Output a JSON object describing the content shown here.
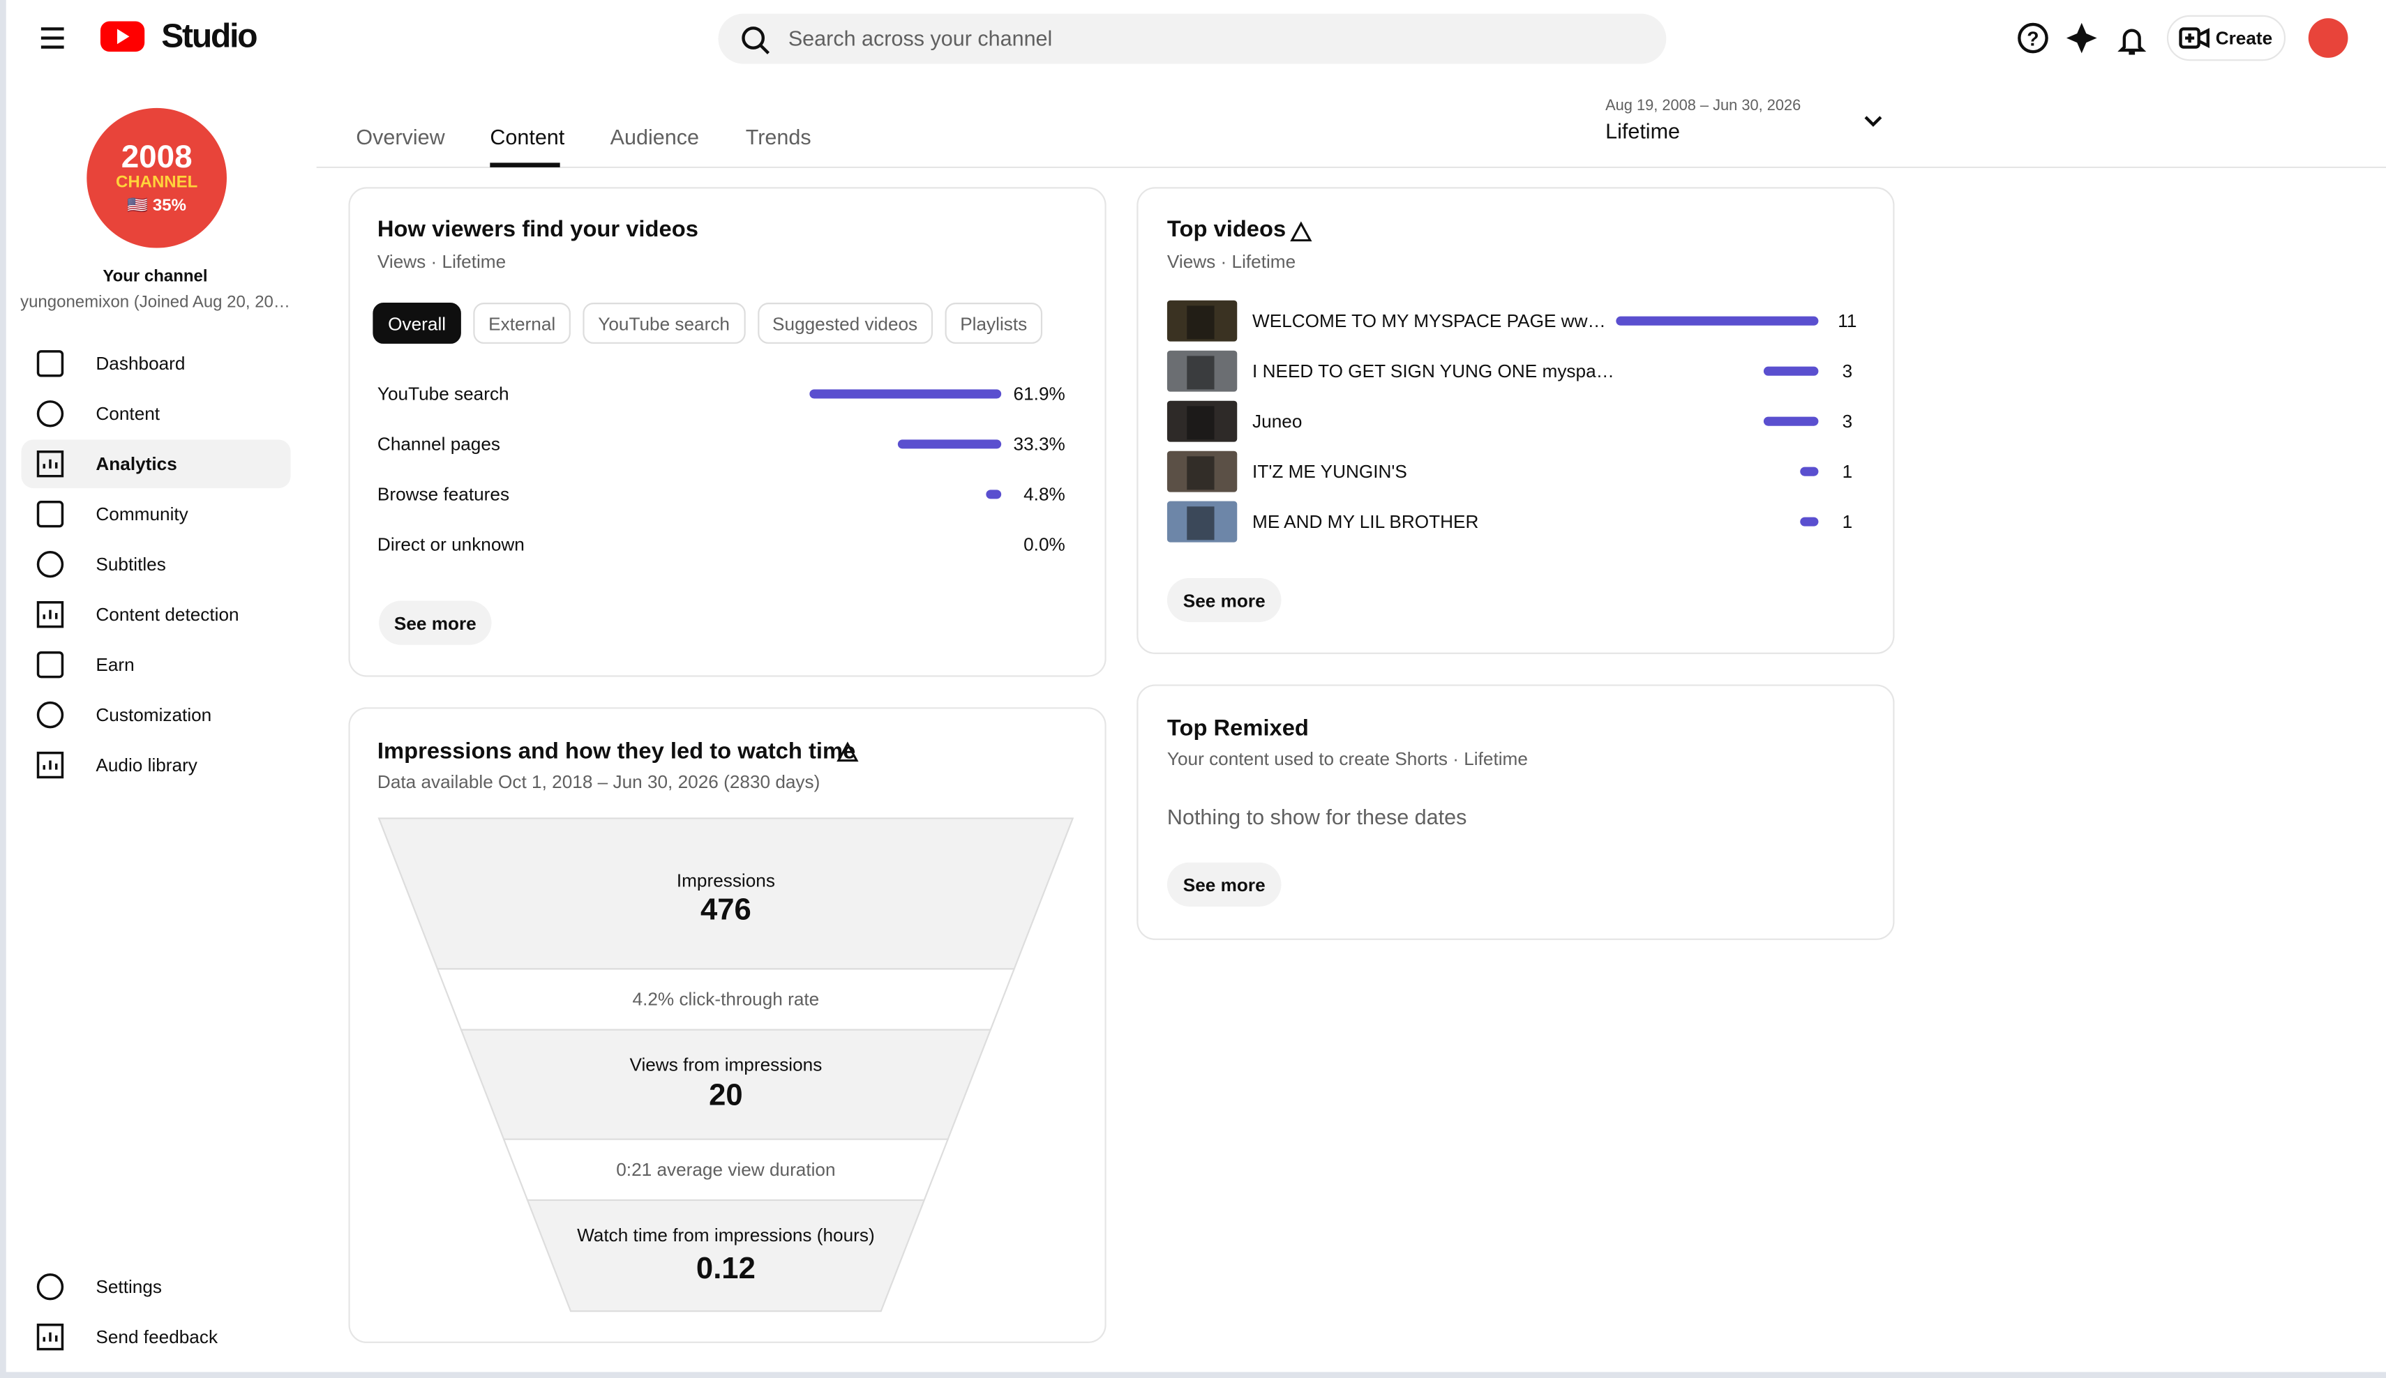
{
  "header": {
    "logo": "Studio",
    "search_placeholder": "Search across your channel",
    "create": "Create"
  },
  "sidebar": {
    "avatar": {
      "line1": "2008",
      "line2": "CHANNEL",
      "line3": "🇺🇸 35%"
    },
    "channel_label": "Your channel",
    "channel_name": "yungonemixon (Joined Aug 20, 20…",
    "nav": [
      {
        "label": "Dashboard"
      },
      {
        "label": "Content"
      },
      {
        "label": "Analytics",
        "selected": true
      },
      {
        "label": "Community"
      },
      {
        "label": "Subtitles"
      },
      {
        "label": "Content detection"
      },
      {
        "label": "Earn"
      },
      {
        "label": "Customization"
      },
      {
        "label": "Audio library"
      }
    ],
    "footer_nav": [
      {
        "label": "Settings"
      },
      {
        "label": "Send feedback"
      }
    ]
  },
  "tabs": [
    {
      "label": "Overview"
    },
    {
      "label": "Content",
      "selected": true
    },
    {
      "label": "Audience"
    },
    {
      "label": "Trends"
    }
  ],
  "date_range": {
    "range": "Aug 19, 2008 – Jun 30, 2026",
    "label": "Lifetime"
  },
  "traffic_card": {
    "title": "How viewers find your videos",
    "subtitle": "Views · Lifetime",
    "chips": [
      {
        "label": "Overall",
        "selected": true
      },
      {
        "label": "External"
      },
      {
        "label": "YouTube search"
      },
      {
        "label": "Suggested videos"
      },
      {
        "label": "Playlists"
      }
    ],
    "rows": [
      {
        "label": "YouTube search",
        "value": {
          "value": 61.9,
          "label": "61.9%"
        }
      },
      {
        "label": "Channel pages",
        "value": {
          "value": 33.3,
          "label": "33.3%"
        }
      },
      {
        "label": "Browse features",
        "value": {
          "value": 4.8,
          "label": "4.8%"
        }
      },
      {
        "label": "Direct or unknown",
        "value": {
          "value": 0.0,
          "label": "0.0%"
        }
      }
    ],
    "button": "See more"
  },
  "impressions_card": {
    "title": "Impressions and how they led to watch time",
    "subtitle": "Data available Oct 1, 2018 – Jun 30, 2026 (2830 days)",
    "impressions": {
      "label": "Impressions",
      "value": 476
    },
    "click_through": "4.2% click-through rate",
    "views": {
      "label": "Views from impressions",
      "value": 20
    },
    "avg_duration": "0:21 average view duration",
    "watch_time": {
      "label": "Watch time from impressions (hours)",
      "value": 0.12
    }
  },
  "top_videos": {
    "title": "Top videos",
    "subtitle": "Views · Lifetime",
    "rows": [
      {
        "title": "WELCOME TO MY MYSPACE PAGE ww…",
        "views": 11
      },
      {
        "title": "I NEED TO GET SIGN YUNG ONE myspa…",
        "views": 3
      },
      {
        "title": "Juneo",
        "views": 3
      },
      {
        "title": "IT'Z ME YUNGIN'S",
        "views": 1
      },
      {
        "title": "ME AND MY LIL BROTHER",
        "views": 1
      }
    ],
    "button": "See more"
  },
  "top_remixed": {
    "title": "Top Remixed",
    "subtitle": "Your content used to create Shorts · Lifetime",
    "empty": "Nothing to show for these dates",
    "button": "See more"
  }
}
